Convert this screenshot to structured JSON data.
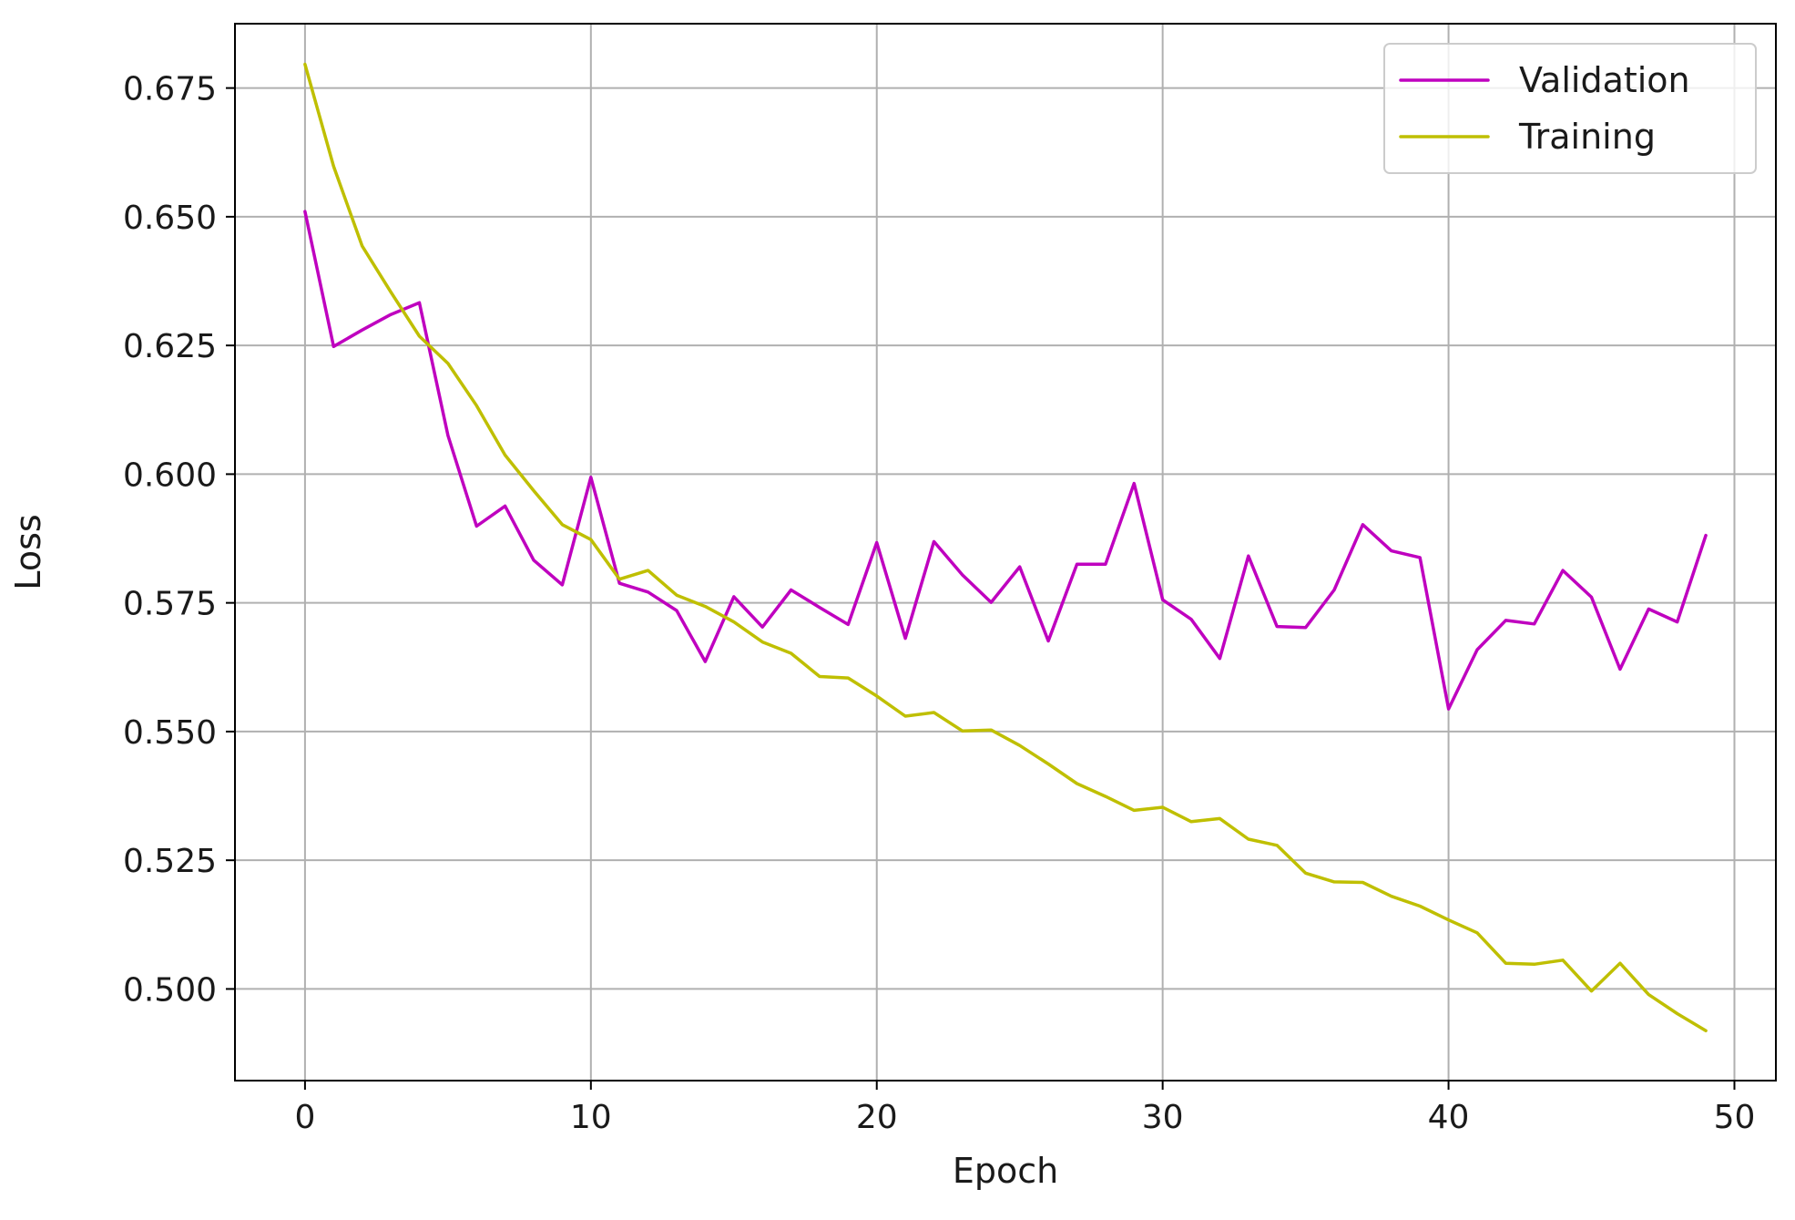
{
  "chart_data": {
    "type": "line",
    "title": "",
    "xlabel": "Epoch",
    "ylabel": "Loss",
    "xlim": [
      -2.45,
      51.45
    ],
    "ylim": [
      0.4822,
      0.6875
    ],
    "xticks": [
      0,
      10,
      20,
      30,
      40,
      50
    ],
    "yticks": [
      0.5,
      0.525,
      0.55,
      0.575,
      0.6,
      0.625,
      0.65,
      0.675
    ],
    "xtick_labels": [
      "0",
      "10",
      "20",
      "30",
      "40",
      "50"
    ],
    "ytick_labels": [
      "0.500",
      "0.525",
      "0.550",
      "0.575",
      "0.600",
      "0.625",
      "0.650",
      "0.675"
    ],
    "grid": true,
    "legend_position": "top-right",
    "x": [
      0,
      1,
      2,
      3,
      4,
      5,
      6,
      7,
      8,
      9,
      10,
      11,
      12,
      13,
      14,
      15,
      16,
      17,
      18,
      19,
      20,
      21,
      22,
      23,
      24,
      25,
      26,
      27,
      28,
      29,
      30,
      31,
      32,
      33,
      34,
      35,
      36,
      37,
      38,
      39,
      40,
      41,
      42,
      43,
      44,
      45,
      46,
      47,
      48,
      49
    ],
    "series": [
      {
        "name": "Validation",
        "color": "#bf00bf",
        "values": [
          0.651,
          0.6248,
          0.628,
          0.631,
          0.6333,
          0.6075,
          0.5899,
          0.5938,
          0.5833,
          0.5785,
          0.5994,
          0.5788,
          0.5771,
          0.5735,
          0.5636,
          0.5762,
          0.5703,
          0.5775,
          0.5741,
          0.5708,
          0.5867,
          0.5681,
          0.5869,
          0.5804,
          0.5751,
          0.582,
          0.5676,
          0.5825,
          0.5825,
          0.5982,
          0.5756,
          0.5718,
          0.5642,
          0.5841,
          0.5704,
          0.5702,
          0.5775,
          0.5902,
          0.5851,
          0.5838,
          0.5544,
          0.5659,
          0.5716,
          0.5709,
          0.5813,
          0.5761,
          0.5621,
          0.5738,
          0.5713,
          0.5881
        ]
      },
      {
        "name": "Training",
        "color": "#bfbf00",
        "values": [
          0.6796,
          0.6598,
          0.6443,
          0.6354,
          0.6268,
          0.6215,
          0.6133,
          0.6037,
          0.5968,
          0.5902,
          0.5873,
          0.5796,
          0.5813,
          0.5765,
          0.5743,
          0.5713,
          0.5674,
          0.5652,
          0.5607,
          0.5604,
          0.5569,
          0.553,
          0.5537,
          0.5501,
          0.5503,
          0.5473,
          0.5437,
          0.5399,
          0.5374,
          0.5347,
          0.5353,
          0.5325,
          0.5331,
          0.5291,
          0.5279,
          0.5225,
          0.5208,
          0.5207,
          0.518,
          0.5161,
          0.5134,
          0.5109,
          0.505,
          0.5048,
          0.5056,
          0.4996,
          0.505,
          0.4989,
          0.4952,
          0.4919
        ]
      }
    ]
  }
}
